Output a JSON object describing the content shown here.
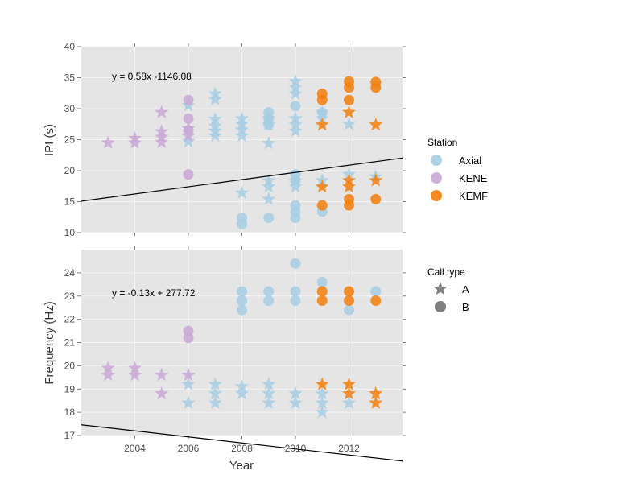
{
  "figure": {
    "xlabel": "Year",
    "colors": {
      "panel_bg": "#e5e5e5",
      "grid": "#f5f5f5",
      "axial": "#a6cee3",
      "kene": "#c9a8d6",
      "kemf": "#f57e0a",
      "legend_shape": "#808080",
      "fit_line": "#000000"
    }
  },
  "legend": {
    "station_title": "Station",
    "stations": [
      {
        "label": "Axial",
        "color": "#a6cee3"
      },
      {
        "label": "KENE",
        "color": "#c9a8d6"
      },
      {
        "label": "KEMF",
        "color": "#f57e0a"
      }
    ],
    "calltype_title": "Call type",
    "calltypes": [
      {
        "label": "A",
        "shape": "star"
      },
      {
        "label": "B",
        "shape": "circle"
      }
    ]
  },
  "chart_data": [
    {
      "type": "scatter",
      "title": "",
      "xlabel": "",
      "ylabel": "IPI (s)",
      "xlim": [
        2002,
        2014
      ],
      "ylim": [
        10,
        40
      ],
      "xticks": [
        "2004",
        "2006",
        "2008",
        "2010",
        "2012"
      ],
      "yticks": [
        "10",
        "15",
        "20",
        "25",
        "30",
        "35",
        "40"
      ],
      "grid": true,
      "equation": "y = 0.58x -1146.08",
      "fit": {
        "slope": 0.58,
        "intercept": -1146.08
      },
      "points": [
        {
          "x": 2003,
          "y": 24.5,
          "station": "KENE",
          "call": "A"
        },
        {
          "x": 2004,
          "y": 24.5,
          "station": "KENE",
          "call": "A"
        },
        {
          "x": 2004,
          "y": 25.2,
          "station": "KENE",
          "call": "A"
        },
        {
          "x": 2005,
          "y": 24.6,
          "station": "KENE",
          "call": "A"
        },
        {
          "x": 2005,
          "y": 25.4,
          "station": "KENE",
          "call": "A"
        },
        {
          "x": 2005,
          "y": 26.3,
          "station": "KENE",
          "call": "A"
        },
        {
          "x": 2005,
          "y": 29.4,
          "station": "KENE",
          "call": "A"
        },
        {
          "x": 2006,
          "y": 24.7,
          "station": "Axial",
          "call": "A"
        },
        {
          "x": 2006,
          "y": 25.6,
          "station": "KENE",
          "call": "A"
        },
        {
          "x": 2006,
          "y": 26.8,
          "station": "KENE",
          "call": "A"
        },
        {
          "x": 2006,
          "y": 30.5,
          "station": "Axial",
          "call": "A"
        },
        {
          "x": 2006,
          "y": 19.4,
          "station": "KENE",
          "call": "B"
        },
        {
          "x": 2006,
          "y": 26.5,
          "station": "KENE",
          "call": "B"
        },
        {
          "x": 2006,
          "y": 28.4,
          "station": "KENE",
          "call": "B"
        },
        {
          "x": 2006,
          "y": 31.4,
          "station": "KENE",
          "call": "B"
        },
        {
          "x": 2007,
          "y": 25.6,
          "station": "Axial",
          "call": "A"
        },
        {
          "x": 2007,
          "y": 26.4,
          "station": "Axial",
          "call": "A"
        },
        {
          "x": 2007,
          "y": 27.2,
          "station": "Axial",
          "call": "A"
        },
        {
          "x": 2007,
          "y": 28.3,
          "station": "Axial",
          "call": "A"
        },
        {
          "x": 2007,
          "y": 31.5,
          "station": "Axial",
          "call": "A"
        },
        {
          "x": 2007,
          "y": 32.4,
          "station": "Axial",
          "call": "A"
        },
        {
          "x": 2008,
          "y": 16.4,
          "station": "Axial",
          "call": "A"
        },
        {
          "x": 2008,
          "y": 25.6,
          "station": "Axial",
          "call": "A"
        },
        {
          "x": 2008,
          "y": 26.6,
          "station": "Axial",
          "call": "A"
        },
        {
          "x": 2008,
          "y": 27.5,
          "station": "Axial",
          "call": "A"
        },
        {
          "x": 2008,
          "y": 28.4,
          "station": "Axial",
          "call": "A"
        },
        {
          "x": 2008,
          "y": 11.4,
          "station": "Axial",
          "call": "B"
        },
        {
          "x": 2008,
          "y": 12.4,
          "station": "Axial",
          "call": "B"
        },
        {
          "x": 2009,
          "y": 15.4,
          "station": "Axial",
          "call": "A"
        },
        {
          "x": 2009,
          "y": 17.4,
          "station": "Axial",
          "call": "A"
        },
        {
          "x": 2009,
          "y": 18.4,
          "station": "Axial",
          "call": "A"
        },
        {
          "x": 2009,
          "y": 24.4,
          "station": "Axial",
          "call": "A"
        },
        {
          "x": 2009,
          "y": 27.4,
          "station": "Axial",
          "call": "A"
        },
        {
          "x": 2009,
          "y": 28.4,
          "station": "Axial",
          "call": "A"
        },
        {
          "x": 2009,
          "y": 12.4,
          "station": "Axial",
          "call": "B"
        },
        {
          "x": 2009,
          "y": 27.4,
          "station": "Axial",
          "call": "B"
        },
        {
          "x": 2009,
          "y": 28.4,
          "station": "Axial",
          "call": "B"
        },
        {
          "x": 2009,
          "y": 29.4,
          "station": "Axial",
          "call": "B"
        },
        {
          "x": 2010,
          "y": 17.4,
          "station": "Axial",
          "call": "A"
        },
        {
          "x": 2010,
          "y": 18.4,
          "station": "Axial",
          "call": "A"
        },
        {
          "x": 2010,
          "y": 26.4,
          "station": "Axial",
          "call": "A"
        },
        {
          "x": 2010,
          "y": 27.4,
          "station": "Axial",
          "call": "A"
        },
        {
          "x": 2010,
          "y": 28.4,
          "station": "Axial",
          "call": "A"
        },
        {
          "x": 2010,
          "y": 32.4,
          "station": "Axial",
          "call": "A"
        },
        {
          "x": 2010,
          "y": 33.4,
          "station": "Axial",
          "call": "A"
        },
        {
          "x": 2010,
          "y": 34.4,
          "station": "Axial",
          "call": "A"
        },
        {
          "x": 2010,
          "y": 12.4,
          "station": "Axial",
          "call": "B"
        },
        {
          "x": 2010,
          "y": 13.4,
          "station": "Axial",
          "call": "B"
        },
        {
          "x": 2010,
          "y": 14.4,
          "station": "Axial",
          "call": "B"
        },
        {
          "x": 2010,
          "y": 18.4,
          "station": "Axial",
          "call": "B"
        },
        {
          "x": 2010,
          "y": 19.4,
          "station": "Axial",
          "call": "B"
        },
        {
          "x": 2010,
          "y": 30.4,
          "station": "Axial",
          "call": "B"
        },
        {
          "x": 2011,
          "y": 18.4,
          "station": "Axial",
          "call": "A"
        },
        {
          "x": 2011,
          "y": 28.4,
          "station": "Axial",
          "call": "A"
        },
        {
          "x": 2011,
          "y": 29.4,
          "station": "Axial",
          "call": "A"
        },
        {
          "x": 2011,
          "y": 17.4,
          "station": "KEMF",
          "call": "A"
        },
        {
          "x": 2011,
          "y": 27.4,
          "station": "KEMF",
          "call": "A"
        },
        {
          "x": 2011,
          "y": 13.4,
          "station": "Axial",
          "call": "B"
        },
        {
          "x": 2011,
          "y": 29.4,
          "station": "Axial",
          "call": "B"
        },
        {
          "x": 2011,
          "y": 14.4,
          "station": "KEMF",
          "call": "B"
        },
        {
          "x": 2011,
          "y": 31.4,
          "station": "KEMF",
          "call": "B"
        },
        {
          "x": 2011,
          "y": 32.4,
          "station": "KEMF",
          "call": "B"
        },
        {
          "x": 2012,
          "y": 19.4,
          "station": "Axial",
          "call": "A"
        },
        {
          "x": 2012,
          "y": 27.5,
          "station": "Axial",
          "call": "A"
        },
        {
          "x": 2012,
          "y": 17.4,
          "station": "KEMF",
          "call": "A"
        },
        {
          "x": 2012,
          "y": 18.4,
          "station": "KEMF",
          "call": "A"
        },
        {
          "x": 2012,
          "y": 29.4,
          "station": "KEMF",
          "call": "A"
        },
        {
          "x": 2012,
          "y": 14.4,
          "station": "KEMF",
          "call": "B"
        },
        {
          "x": 2012,
          "y": 15.4,
          "station": "KEMF",
          "call": "B"
        },
        {
          "x": 2012,
          "y": 31.4,
          "station": "KEMF",
          "call": "B"
        },
        {
          "x": 2012,
          "y": 33.4,
          "station": "KEMF",
          "call": "B"
        },
        {
          "x": 2012,
          "y": 34.4,
          "station": "KEMF",
          "call": "B"
        },
        {
          "x": 2013,
          "y": 19.0,
          "station": "Axial",
          "call": "A"
        },
        {
          "x": 2013,
          "y": 34.0,
          "station": "Axial",
          "call": "A"
        },
        {
          "x": 2013,
          "y": 18.4,
          "station": "KEMF",
          "call": "A"
        },
        {
          "x": 2013,
          "y": 27.4,
          "station": "KEMF",
          "call": "A"
        },
        {
          "x": 2013,
          "y": 15.4,
          "station": "KEMF",
          "call": "B"
        },
        {
          "x": 2013,
          "y": 33.4,
          "station": "KEMF",
          "call": "B"
        },
        {
          "x": 2013,
          "y": 34.3,
          "station": "KEMF",
          "call": "B"
        }
      ]
    },
    {
      "type": "scatter",
      "title": "",
      "xlabel": "Year",
      "ylabel": "Frequency (Hz)",
      "xlim": [
        2002,
        2014
      ],
      "ylim": [
        17,
        25
      ],
      "xticks": [
        "2004",
        "2006",
        "2008",
        "2010",
        "2012"
      ],
      "yticks": [
        "17",
        "18",
        "19",
        "20",
        "21",
        "22",
        "23",
        "24"
      ],
      "grid": true,
      "equation": "y = -0.13x + 277.72",
      "fit": {
        "slope": -0.13,
        "intercept": 277.72
      },
      "points": [
        {
          "x": 2003,
          "y": 19.6,
          "station": "KENE",
          "call": "A"
        },
        {
          "x": 2003,
          "y": 19.9,
          "station": "KENE",
          "call": "A"
        },
        {
          "x": 2004,
          "y": 19.6,
          "station": "KENE",
          "call": "A"
        },
        {
          "x": 2004,
          "y": 19.9,
          "station": "KENE",
          "call": "A"
        },
        {
          "x": 2005,
          "y": 18.8,
          "station": "KENE",
          "call": "A"
        },
        {
          "x": 2005,
          "y": 19.6,
          "station": "KENE",
          "call": "A"
        },
        {
          "x": 2006,
          "y": 18.4,
          "station": "Axial",
          "call": "A"
        },
        {
          "x": 2006,
          "y": 19.2,
          "station": "Axial",
          "call": "A"
        },
        {
          "x": 2006,
          "y": 19.6,
          "station": "KENE",
          "call": "A"
        },
        {
          "x": 2006,
          "y": 21.2,
          "station": "KENE",
          "call": "B"
        },
        {
          "x": 2006,
          "y": 21.5,
          "station": "KENE",
          "call": "B"
        },
        {
          "x": 2007,
          "y": 18.4,
          "station": "Axial",
          "call": "A"
        },
        {
          "x": 2007,
          "y": 18.8,
          "station": "Axial",
          "call": "A"
        },
        {
          "x": 2007,
          "y": 19.2,
          "station": "Axial",
          "call": "A"
        },
        {
          "x": 2008,
          "y": 18.8,
          "station": "Axial",
          "call": "A"
        },
        {
          "x": 2008,
          "y": 19.1,
          "station": "Axial",
          "call": "A"
        },
        {
          "x": 2008,
          "y": 22.4,
          "station": "Axial",
          "call": "B"
        },
        {
          "x": 2008,
          "y": 22.8,
          "station": "Axial",
          "call": "B"
        },
        {
          "x": 2008,
          "y": 23.2,
          "station": "Axial",
          "call": "B"
        },
        {
          "x": 2009,
          "y": 18.4,
          "station": "Axial",
          "call": "A"
        },
        {
          "x": 2009,
          "y": 18.8,
          "station": "Axial",
          "call": "A"
        },
        {
          "x": 2009,
          "y": 19.2,
          "station": "Axial",
          "call": "A"
        },
        {
          "x": 2009,
          "y": 22.8,
          "station": "Axial",
          "call": "B"
        },
        {
          "x": 2009,
          "y": 23.2,
          "station": "Axial",
          "call": "B"
        },
        {
          "x": 2010,
          "y": 18.4,
          "station": "Axial",
          "call": "A"
        },
        {
          "x": 2010,
          "y": 18.8,
          "station": "Axial",
          "call": "A"
        },
        {
          "x": 2010,
          "y": 22.8,
          "station": "Axial",
          "call": "B"
        },
        {
          "x": 2010,
          "y": 23.2,
          "station": "Axial",
          "call": "B"
        },
        {
          "x": 2010,
          "y": 24.4,
          "station": "Axial",
          "call": "B"
        },
        {
          "x": 2011,
          "y": 18.0,
          "station": "Axial",
          "call": "A"
        },
        {
          "x": 2011,
          "y": 18.4,
          "station": "Axial",
          "call": "A"
        },
        {
          "x": 2011,
          "y": 18.8,
          "station": "Axial",
          "call": "A"
        },
        {
          "x": 2011,
          "y": 19.2,
          "station": "KEMF",
          "call": "A"
        },
        {
          "x": 2011,
          "y": 23.6,
          "station": "Axial",
          "call": "B"
        },
        {
          "x": 2011,
          "y": 22.8,
          "station": "KEMF",
          "call": "B"
        },
        {
          "x": 2011,
          "y": 23.2,
          "station": "KEMF",
          "call": "B"
        },
        {
          "x": 2012,
          "y": 18.4,
          "station": "Axial",
          "call": "A"
        },
        {
          "x": 2012,
          "y": 18.8,
          "station": "KEMF",
          "call": "A"
        },
        {
          "x": 2012,
          "y": 19.2,
          "station": "KEMF",
          "call": "A"
        },
        {
          "x": 2012,
          "y": 22.4,
          "station": "Axial",
          "call": "B"
        },
        {
          "x": 2012,
          "y": 22.8,
          "station": "KEMF",
          "call": "B"
        },
        {
          "x": 2012,
          "y": 23.2,
          "station": "KEMF",
          "call": "B"
        },
        {
          "x": 2013,
          "y": 18.4,
          "station": "KEMF",
          "call": "A"
        },
        {
          "x": 2013,
          "y": 18.8,
          "station": "KEMF",
          "call": "A"
        },
        {
          "x": 2013,
          "y": 23.2,
          "station": "Axial",
          "call": "B"
        },
        {
          "x": 2013,
          "y": 22.8,
          "station": "KEMF",
          "call": "B"
        }
      ]
    }
  ]
}
